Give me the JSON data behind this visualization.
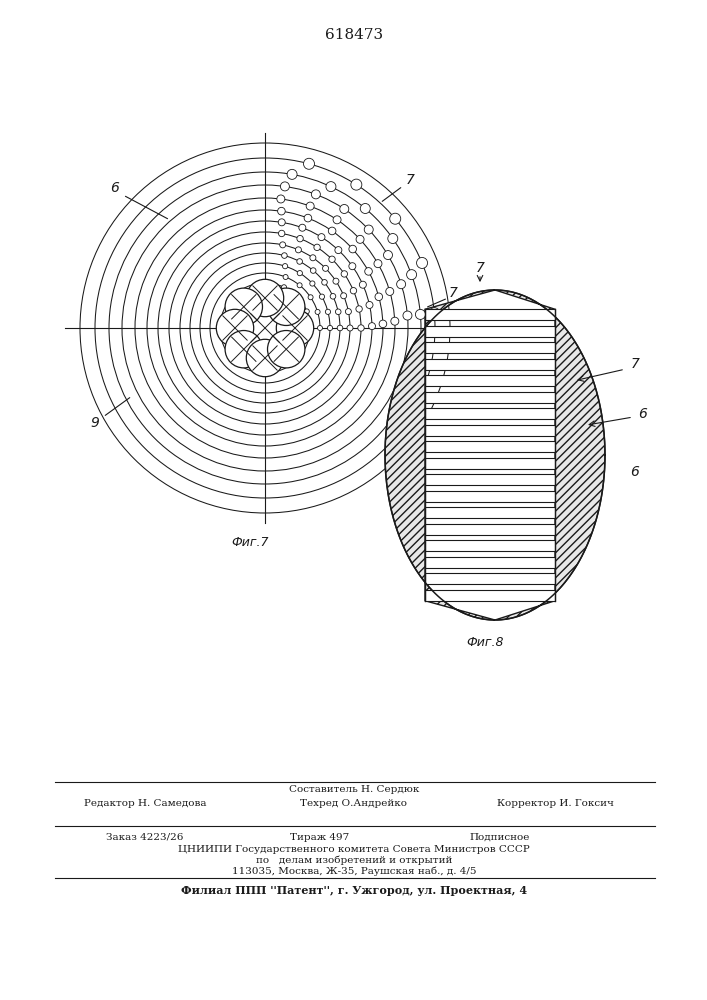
{
  "title": "618473",
  "fig7_label": "Фиг.7",
  "fig8_label": "Фиг.8",
  "label_6": "6",
  "label_7": "7",
  "label_9": "9",
  "line_color": "#1a1a1a",
  "footer_line1_left": "Редактор Н. Самедова",
  "footer_line1_mid": "Составитель Н. Сердюк",
  "footer_line1_mid2": "Техред О.Андрейко",
  "footer_line1_right": "Корректор И. Гоксич",
  "footer_line2a": "Заказ 4223/26",
  "footer_line2b": "Тираж 497",
  "footer_line2c": "Подписное",
  "footer_line3": "ЦНИИПИ Государственного комитета Совета Министров СССР",
  "footer_line4": "по   делам изобретений и открытий",
  "footer_line5": "113035, Москва, Ж-35, Раушская наб., д. 4/5",
  "footer_line6": "Филиал ППП ''Патент'', г. Ужгород, ул. Проектная, 4"
}
